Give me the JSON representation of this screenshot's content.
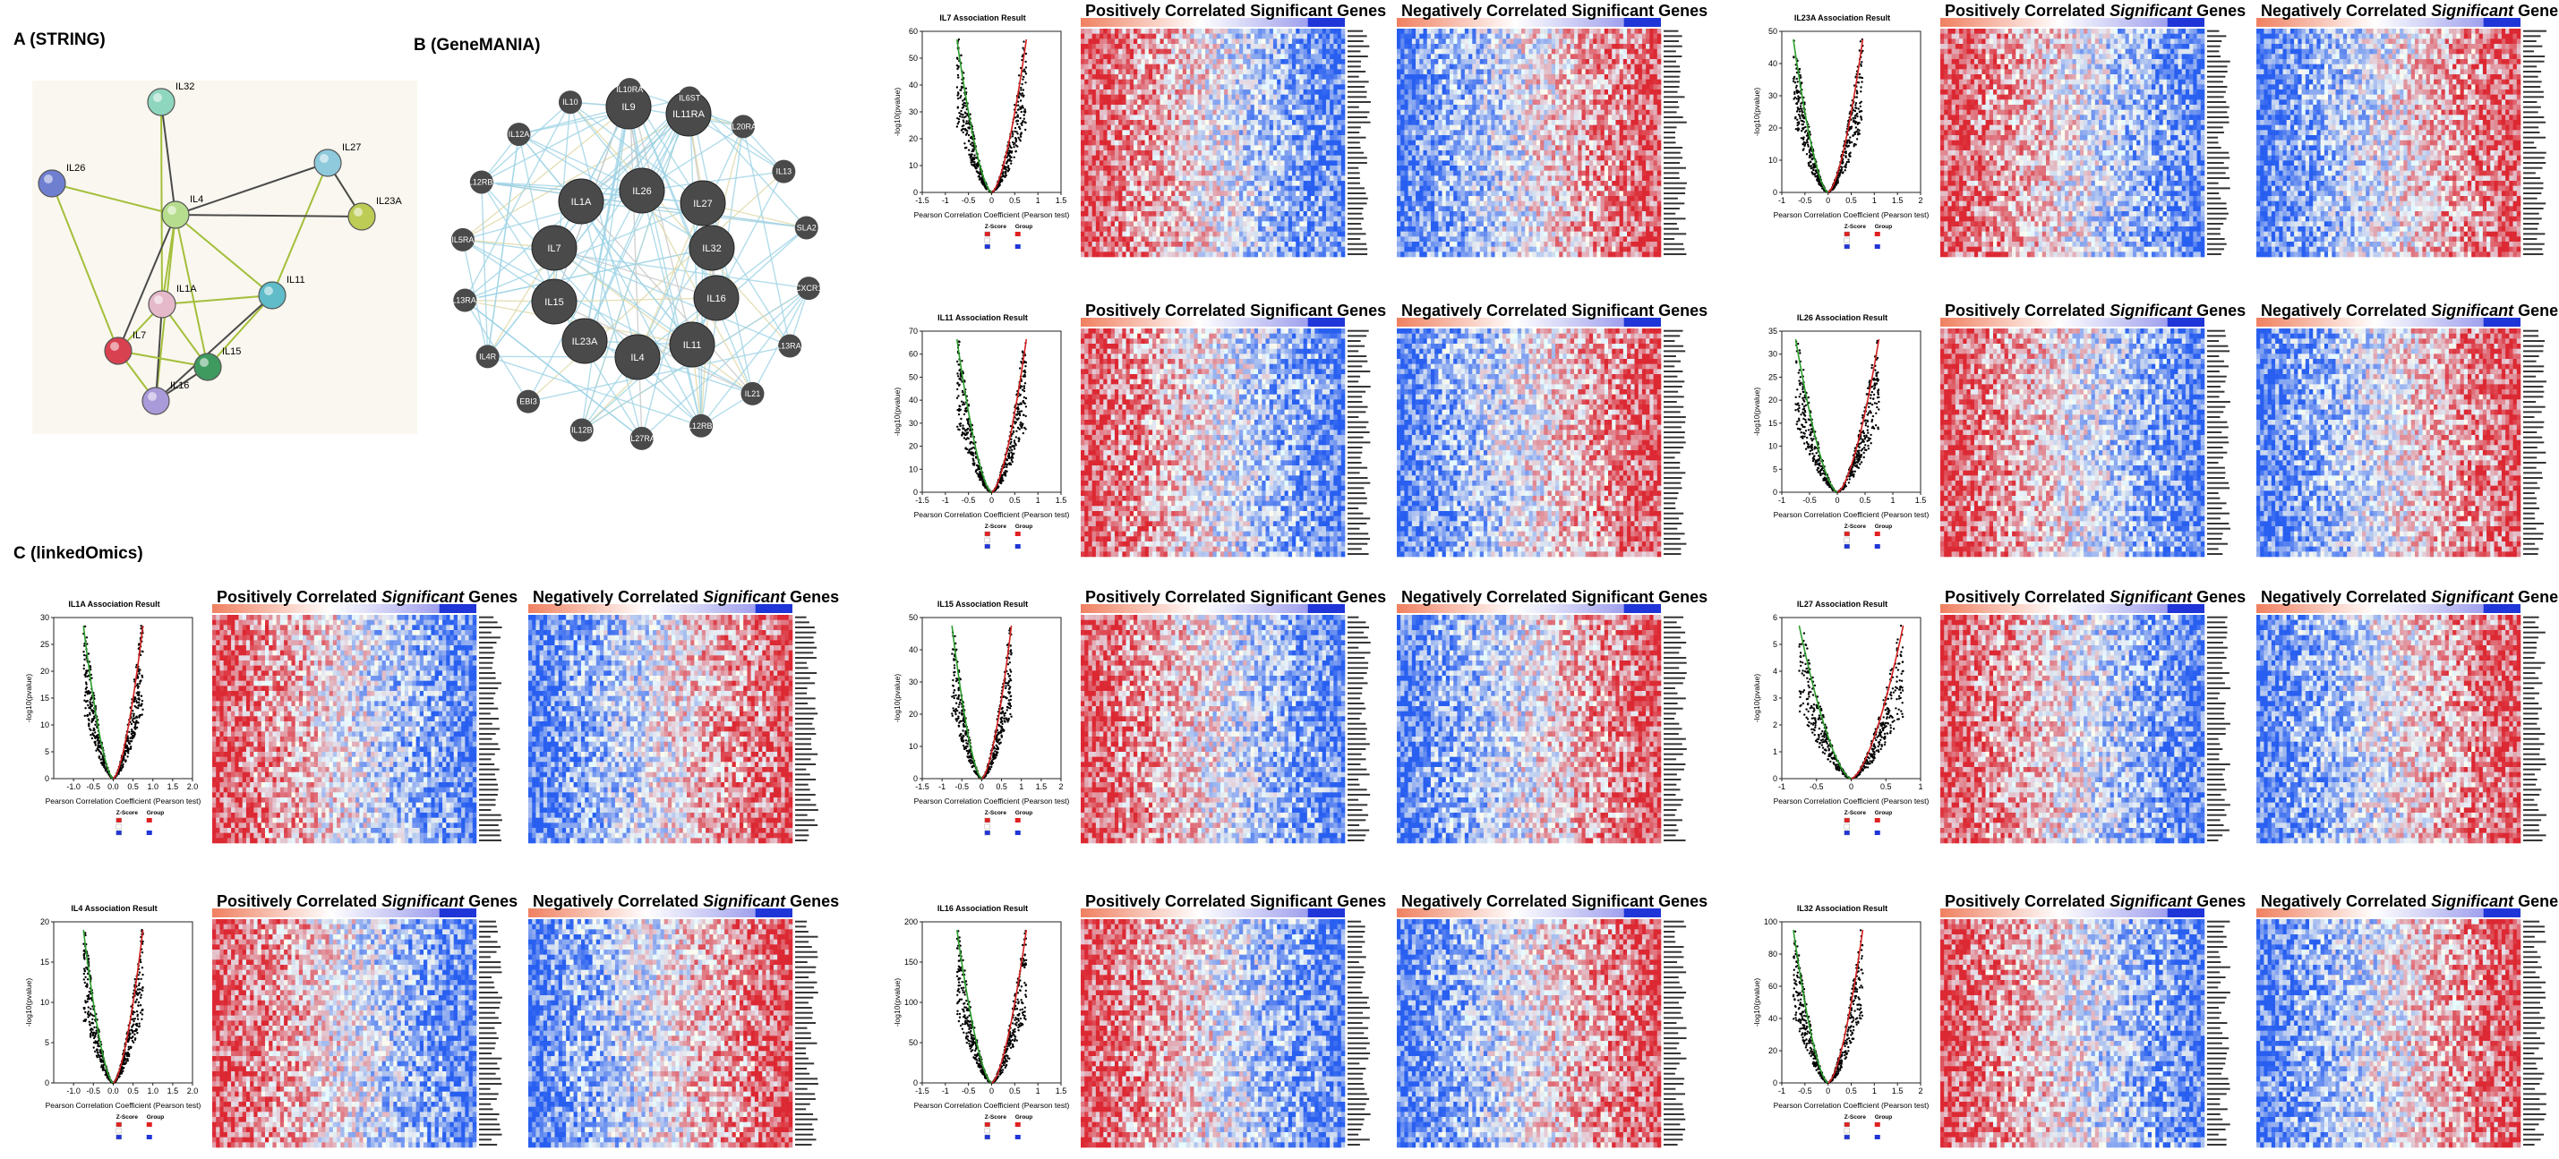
{
  "panels": {
    "a": "A (STRING)",
    "b": "B (GeneMANIA)",
    "c": "C (linkedOmics)"
  },
  "string": {
    "nodes": [
      {
        "label": "IL32",
        "color": "#8fd6bf"
      },
      {
        "label": "IL26",
        "color": "#6f7fd0"
      },
      {
        "label": "IL27",
        "color": "#8ec9dc"
      },
      {
        "label": "IL4",
        "color": "#b6dd8e"
      },
      {
        "label": "IL23A",
        "color": "#bccc55"
      },
      {
        "label": "IL11",
        "color": "#5fbcc8"
      },
      {
        "label": "IL1A",
        "color": "#e5b9c9"
      },
      {
        "label": "IL7",
        "color": "#d84150"
      },
      {
        "label": "IL15",
        "color": "#3f9a5f"
      },
      {
        "label": "IL16",
        "color": "#a99ad9"
      }
    ]
  },
  "genemania": {
    "query_genes": [
      "IL9",
      "IL11RA",
      "IL1A",
      "IL26",
      "IL27",
      "IL7",
      "IL32",
      "IL15",
      "IL16",
      "IL23A",
      "IL4",
      "IL11"
    ],
    "related_genes": [
      "IL10",
      "IL10RA",
      "IL6ST",
      "IL20RA",
      "IL13",
      "SLA2",
      "CXCR1",
      "IL13RA2",
      "IL21",
      "IL12RB1",
      "IL27RA",
      "IL12B",
      "EBI3",
      "IL4R",
      "IL13RA1",
      "IL5RA",
      "IL12RB2",
      "IL12A"
    ]
  },
  "volcano_common": {
    "xlabel": "Pearson Correlation Coefficient (Pearson test)",
    "ylabel": "-log10(pvalue)",
    "legend_z": "Z-Score",
    "legend_g": "Group"
  },
  "heat_titles": {
    "pos": "Positively Correlated Significant Genes",
    "pos_pre": "Positively Correlated ",
    "neg": "Negatively Correlated Significant Genes",
    "neg_pre": "Negatively Correlated ",
    "sig": "Significant",
    "genes": " Genes"
  },
  "chart_data": [
    {
      "type": "scatter",
      "title": "IL7 Association Result",
      "xlim": [
        -1.5,
        1.5
      ],
      "xticks": [
        "-1.5",
        "-1",
        "-0.5",
        "0",
        "0.5",
        "1",
        "1.5"
      ],
      "ylim": [
        0,
        60
      ],
      "yticks": [
        "0",
        "10",
        "20",
        "30",
        "40",
        "50",
        "60"
      ],
      "italic": false
    },
    {
      "type": "scatter",
      "title": "IL23A Association Result",
      "xlim": [
        -1,
        2
      ],
      "xticks": [
        "-1",
        "-0.5",
        "0",
        "0.5",
        "1",
        "1.5",
        "2"
      ],
      "ylim": [
        0,
        50
      ],
      "yticks": [
        "0",
        "10",
        "20",
        "30",
        "40",
        "50"
      ],
      "italic": true
    },
    {
      "type": "scatter",
      "title": "IL11 Association Result",
      "xlim": [
        -1.5,
        1.5
      ],
      "xticks": [
        "-1.5",
        "-1",
        "-0.5",
        "0",
        "0.5",
        "1",
        "1.5"
      ],
      "ylim": [
        0,
        70
      ],
      "yticks": [
        "0",
        "10",
        "20",
        "30",
        "40",
        "50",
        "60",
        "70"
      ],
      "italic": false
    },
    {
      "type": "scatter",
      "title": "IL26 Association Result",
      "xlim": [
        -1,
        1.5
      ],
      "xticks": [
        "-1",
        "-0.5",
        "0",
        "0.5",
        "1",
        "1.5"
      ],
      "ylim": [
        0,
        35
      ],
      "yticks": [
        "0",
        "5",
        "10",
        "15",
        "20",
        "25",
        "30",
        "35"
      ],
      "italic": true
    },
    {
      "type": "scatter",
      "title": "IL1A Association Result",
      "xlim": [
        -1.5,
        2
      ],
      "xticks": [
        "-1.0",
        "-0.5",
        "0.0",
        "0.5",
        "1.0",
        "1.5",
        "2.0"
      ],
      "ylim": [
        0,
        30
      ],
      "yticks": [
        "0",
        "5",
        "10",
        "15",
        "20",
        "25",
        "30"
      ],
      "italic": true
    },
    {
      "type": "scatter",
      "title": "IL15 Association Result",
      "xlim": [
        -1.5,
        2
      ],
      "xticks": [
        "-1.5",
        "-1",
        "-0.5",
        "0",
        "0.5",
        "1",
        "1.5",
        "2"
      ],
      "ylim": [
        0,
        50
      ],
      "yticks": [
        "0",
        "10",
        "20",
        "30",
        "40",
        "50"
      ],
      "italic": false
    },
    {
      "type": "scatter",
      "title": "IL27 Association Result",
      "xlim": [
        -1,
        1
      ],
      "xticks": [
        "-1",
        "-0.5",
        "0",
        "0.5",
        "1"
      ],
      "ylim": [
        0,
        6
      ],
      "yticks": [
        "0",
        "1",
        "2",
        "3",
        "4",
        "5",
        "6"
      ],
      "italic": true
    },
    {
      "type": "scatter",
      "title": "IL4 Association Result",
      "xlim": [
        -1.5,
        2
      ],
      "xticks": [
        "-1.0",
        "-0.5",
        "0.0",
        "0.5",
        "1.0",
        "1.5",
        "2.0"
      ],
      "ylim": [
        0,
        20
      ],
      "yticks": [
        "0",
        "5",
        "10",
        "15",
        "20"
      ],
      "italic": true
    },
    {
      "type": "scatter",
      "title": "IL16 Association Result",
      "xlim": [
        -1.5,
        1.5
      ],
      "xticks": [
        "-1.5",
        "-1",
        "-0.5",
        "0",
        "0.5",
        "1",
        "1.5"
      ],
      "ylim": [
        0,
        200
      ],
      "yticks": [
        "0",
        "50",
        "100",
        "150",
        "200"
      ],
      "italic": false
    },
    {
      "type": "scatter",
      "title": "IL32 Association Result",
      "xlim": [
        -1,
        2
      ],
      "xticks": [
        "-1",
        "-0.5",
        "0",
        "0.5",
        "1",
        "1.5",
        "2"
      ],
      "ylim": [
        0,
        100
      ],
      "yticks": [
        "0",
        "20",
        "40",
        "60",
        "80",
        "100"
      ],
      "italic": true
    }
  ]
}
